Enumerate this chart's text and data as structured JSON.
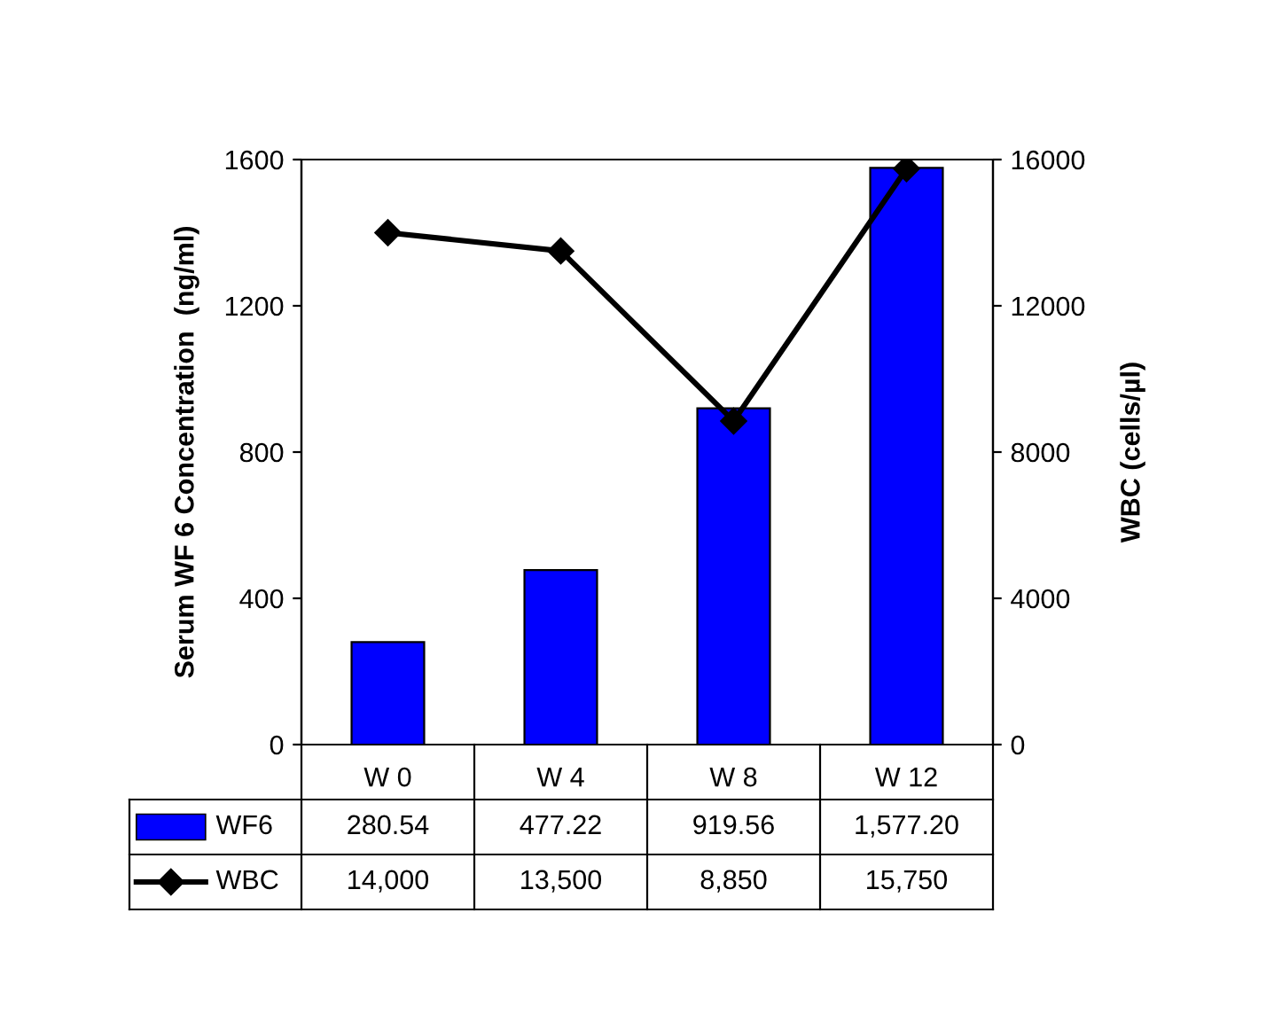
{
  "chart_data": {
    "type": "bar",
    "ylabel": "Serum WF 6 Concentration  (ng/ml)",
    "y2label": "WBC (cells/µl)",
    "categories": [
      "W 0",
      "W 4",
      "W 8",
      "W 12"
    ],
    "series": [
      {
        "name": "WF6",
        "color": "#0000ff",
        "values": [
          280.54,
          477.22,
          919.56,
          1577.2
        ],
        "value_labels": [
          "280.54",
          "477.22",
          "919.56",
          "1,577.20"
        ]
      },
      {
        "name": "WBC",
        "type": "line",
        "axis": "y2",
        "color": "#000000",
        "marker": "diamond",
        "values": [
          14000,
          13500,
          8850,
          15750
        ],
        "value_labels": [
          "14,000",
          "13,500",
          "8,850",
          "15,750"
        ]
      }
    ],
    "ylim": [
      0,
      1600
    ],
    "yticks": [
      0,
      400,
      800,
      1200,
      1600
    ],
    "y2lim": [
      0,
      16000
    ],
    "y2ticks": [
      0,
      4000,
      8000,
      12000,
      16000
    ],
    "grid": false,
    "legend": "bottom left",
    "data_labels": true
  }
}
